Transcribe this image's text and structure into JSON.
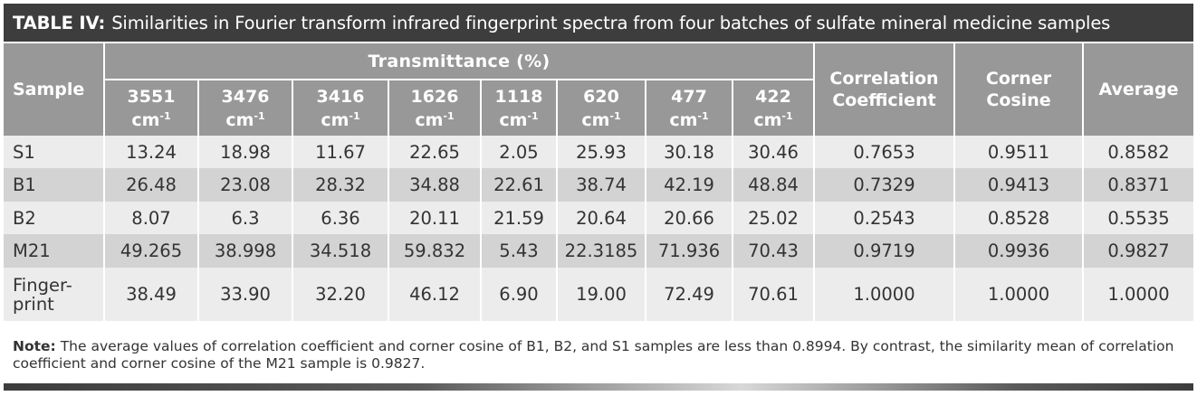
{
  "title": {
    "label": "TABLE IV:",
    "text": "Similarities in Fourier transform infrared fingerprint spectra from four batches of sulfate mineral medicine samples"
  },
  "header": {
    "sample": "Sample",
    "transmittance": "Transmittance (%)",
    "wavenumbers": [
      "3551",
      "3476",
      "3416",
      "1626",
      "1118",
      "620",
      "477",
      "422"
    ],
    "unit": "cm",
    "unit_exp": "-1",
    "correlation_line1": "Correlation",
    "correlation_line2": "Coefficient",
    "corner_line1": "Corner",
    "corner_line2": "Cosine",
    "average": "Average"
  },
  "rows": [
    {
      "sample": "S1",
      "values": [
        "13.24",
        "18.98",
        "11.67",
        "22.65",
        "2.05",
        "25.93",
        "30.18",
        "30.46"
      ],
      "correlation": "0.7653",
      "corner": "0.9511",
      "average": "0.8582"
    },
    {
      "sample": "B1",
      "values": [
        "26.48",
        "23.08",
        "28.32",
        "34.88",
        "22.61",
        "38.74",
        "42.19",
        "48.84"
      ],
      "correlation": "0.7329",
      "corner": "0.9413",
      "average": "0.8371"
    },
    {
      "sample": "B2",
      "values": [
        "8.07",
        "6.3",
        "6.36",
        "20.11",
        "21.59",
        "20.64",
        "20.66",
        "25.02"
      ],
      "correlation": "0.2543",
      "corner": "0.8528",
      "average": "0.5535"
    },
    {
      "sample": "M21",
      "values": [
        "49.265",
        "38.998",
        "34.518",
        "59.832",
        "5.43",
        "22.3185",
        "71.936",
        "70.43"
      ],
      "correlation": "0.9719",
      "corner": "0.9936",
      "average": "0.9827"
    },
    {
      "sample_line1": "Finger-",
      "sample_line2": "print",
      "values": [
        "38.49",
        "33.90",
        "32.20",
        "46.12",
        "6.90",
        "19.00",
        "72.49",
        "70.61"
      ],
      "correlation": "1.0000",
      "corner": "1.0000",
      "average": "1.0000"
    }
  ],
  "note": {
    "label": "Note:",
    "text": "The average values of correlation coefficient and corner cosine of B1, B2, and S1 samples are less than 0.8994. By contrast, the similarity mean of correlation coefficient and corner cosine of the M21 sample is 0.9827."
  }
}
